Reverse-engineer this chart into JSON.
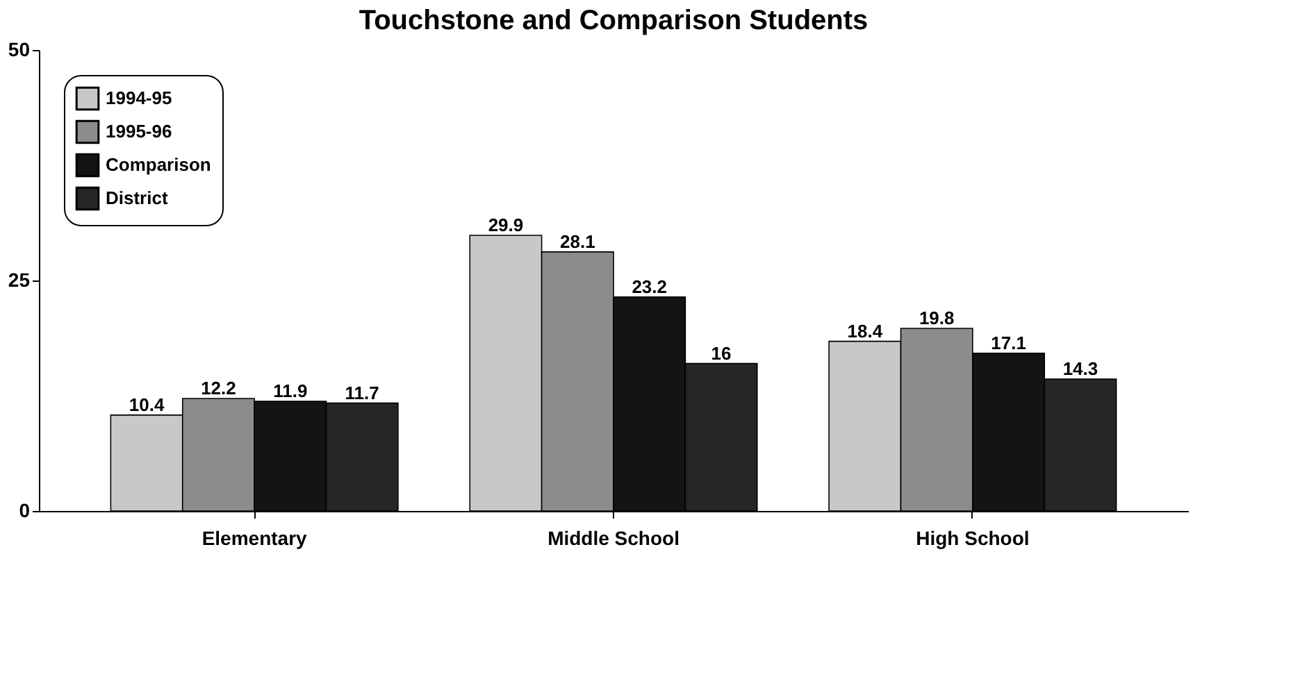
{
  "chart_data": {
    "type": "bar",
    "title": "Touchstone and Comparison Students",
    "categories": [
      "Elementary",
      "Middle School",
      "High School"
    ],
    "series": [
      {
        "name": "1994-95",
        "color": "#c8c8c8",
        "values": [
          10.4,
          29.9,
          18.4
        ]
      },
      {
        "name": "1995-96",
        "color": "#8c8c8c",
        "values": [
          12.2,
          28.1,
          19.8
        ]
      },
      {
        "name": "Comparison",
        "color": "#141414",
        "values": [
          11.9,
          23.2,
          17.1
        ]
      },
      {
        "name": "District",
        "color": "#262626",
        "values": [
          11.7,
          16,
          14.3
        ]
      }
    ],
    "ylim": [
      0,
      50
    ],
    "yticks": [
      0,
      25,
      50
    ],
    "grid": false,
    "legend": "top left",
    "data_labels": true
  }
}
